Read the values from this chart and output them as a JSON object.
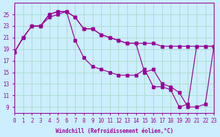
{
  "xlabel": "Windchill (Refroidissement éolien,°C)",
  "background_color": "#cceeff",
  "grid_color": "#aaddcc",
  "line_color": "#990099",
  "hours": [
    0,
    1,
    2,
    3,
    4,
    5,
    6,
    7,
    8,
    9,
    10,
    11,
    12,
    13,
    14,
    15,
    16,
    17,
    18,
    19,
    20,
    21,
    22,
    23
  ],
  "temp_line1": [
    18.5,
    21,
    23,
    23,
    25,
    25.5,
    25.5,
    24.5,
    22.5,
    22.5,
    21.5,
    21,
    20.5,
    20,
    20,
    15,
    15.5,
    13,
    12.5,
    11.5,
    9,
    9,
    9.5,
    19.5
  ],
  "temp_line2": [
    18.5,
    21,
    23,
    23,
    25,
    25.5,
    25.5,
    20.5,
    17.5,
    16,
    15.5,
    15,
    14.5,
    14.5,
    14.5,
    15.5,
    12.5,
    12.5,
    12,
    9,
    9.5,
    19.5,
    19.5,
    19.5
  ],
  "temp_line3": [
    18.5,
    21,
    23,
    23,
    24.5,
    25,
    25.5,
    24.5,
    22.5,
    22.5,
    21.5,
    21,
    20.5,
    20,
    20,
    20,
    20,
    19.5,
    19.5,
    19.5,
    19.5,
    19.5,
    19.5,
    19.5
  ],
  "ylim": [
    8,
    27
  ],
  "yticks": [
    9,
    11,
    13,
    15,
    17,
    19,
    21,
    23,
    25
  ],
  "xlim": [
    0,
    23
  ],
  "xticks": [
    0,
    1,
    2,
    3,
    4,
    5,
    6,
    7,
    8,
    9,
    10,
    11,
    12,
    13,
    14,
    15,
    16,
    17,
    18,
    19,
    20,
    21,
    22,
    23
  ]
}
